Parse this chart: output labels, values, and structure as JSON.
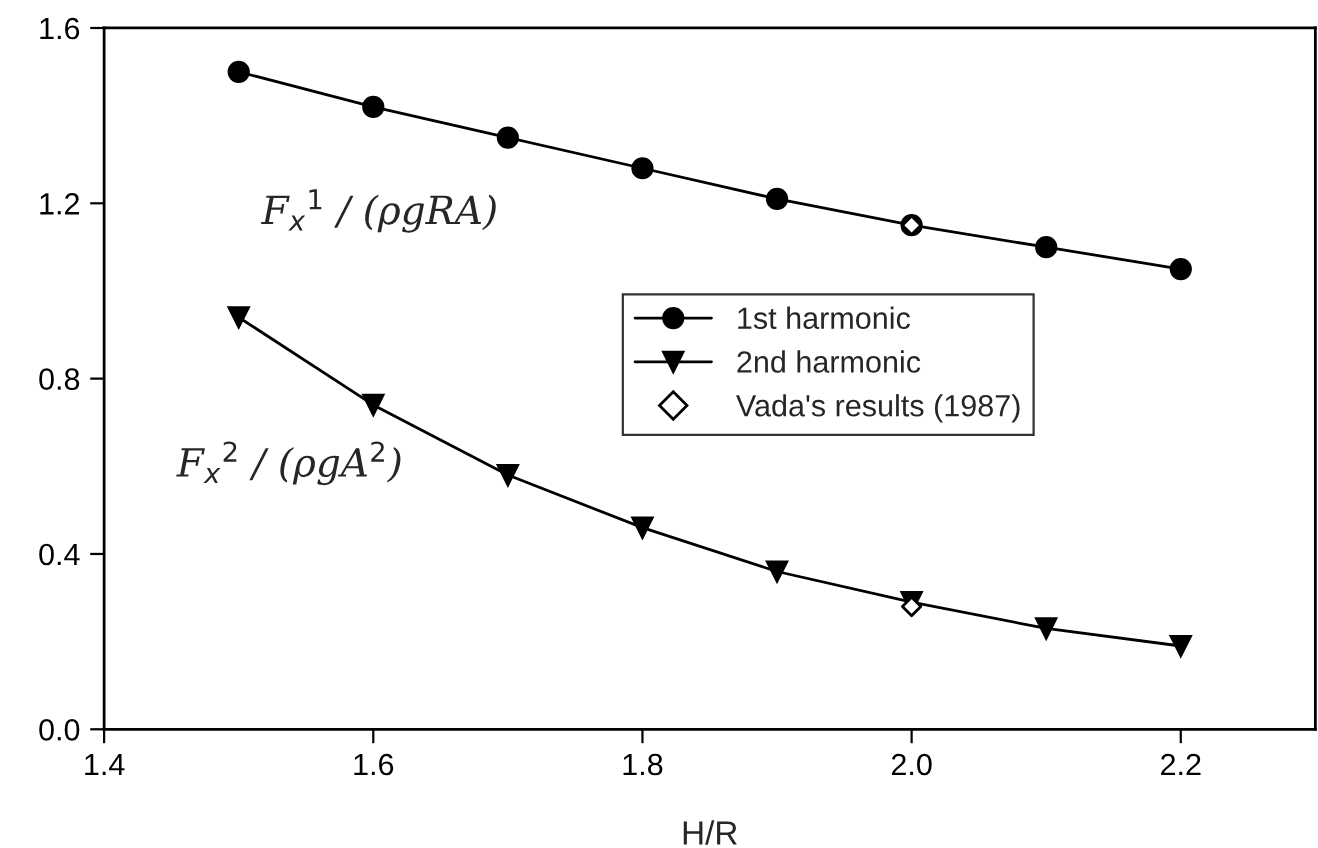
{
  "chart_data": {
    "type": "line",
    "xlabel": "H/R",
    "x": [
      1.5,
      1.6,
      1.7,
      1.8,
      1.9,
      2.0,
      2.1,
      2.2
    ],
    "series": [
      {
        "name": "1st harmonic",
        "color": "#000000",
        "marker": "circle",
        "values": [
          1.5,
          1.42,
          1.35,
          1.28,
          1.21,
          1.15,
          1.1,
          1.05
        ]
      },
      {
        "name": "2nd harmonic",
        "color": "#000000",
        "marker": "triangle",
        "values": [
          0.94,
          0.74,
          0.58,
          0.46,
          0.36,
          0.29,
          0.23,
          0.19
        ]
      },
      {
        "name": "Vada's results (1987)",
        "type": "scatter",
        "color": "#000000",
        "marker": "diamond",
        "x": [
          2.0,
          2.0
        ],
        "values": [
          1.15,
          0.28
        ]
      }
    ],
    "xlim": [
      1.4,
      2.3
    ],
    "xticks": [
      {
        "value": 1.4,
        "label": "1.4"
      },
      {
        "value": 1.6,
        "label": "1.6"
      },
      {
        "value": 1.8,
        "label": "1.8"
      },
      {
        "value": 2.0,
        "label": "2.0"
      },
      {
        "value": 2.2,
        "label": "2.2"
      }
    ],
    "ylim": [
      0,
      1.6
    ],
    "yticks": [
      {
        "value": 0,
        "label": "0.0"
      },
      {
        "value": 0.4,
        "label": "0.4"
      },
      {
        "value": 0.8,
        "label": "0.8"
      },
      {
        "value": 1.2,
        "label": "1.2"
      },
      {
        "value": 1.6,
        "label": "1.6"
      }
    ],
    "annotations": [
      "F$_{x}$$^{1}$ / (ρgRA)",
      "F$_{x}$$^{2}$ / (ρgA$^{2}$)"
    ],
    "grid": false,
    "legend": "right"
  }
}
